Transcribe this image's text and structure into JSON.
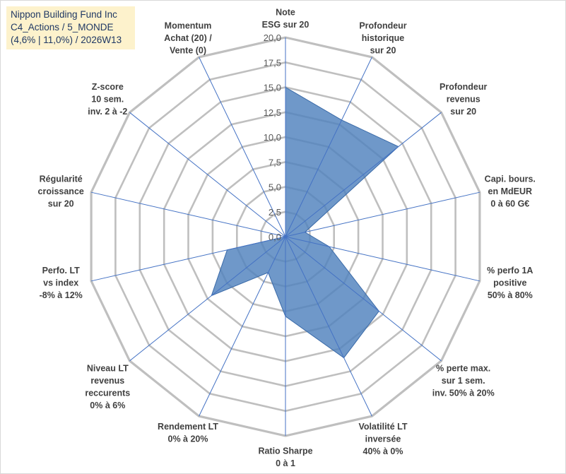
{
  "title_box": {
    "line1": "Nippon Building Fund Inc",
    "line2": "C4_Actions / 5_MONDE",
    "line3": "(4,6% | 11,0%) / 2026W13"
  },
  "chart_data": {
    "type": "radar",
    "rmax": 20,
    "ticks": [
      "0,0",
      "2,5",
      "5,0",
      "7,5",
      "10,0",
      "12,5",
      "15,0",
      "17,5",
      "20,0"
    ],
    "tick_values": [
      0,
      2.5,
      5,
      7.5,
      10,
      12.5,
      15,
      17.5,
      20
    ],
    "axes": [
      {
        "label": [
          "Note",
          "ESG sur 20"
        ],
        "value": 15.0
      },
      {
        "label": [
          "Profondeur",
          "historique",
          "sur 20"
        ],
        "value": 13.0
      },
      {
        "label": [
          "Profondeur",
          "revenus",
          "sur 20"
        ],
        "value": 14.5
      },
      {
        "label": [
          "Capi. bours.",
          "en MdEUR",
          "0 à 60 G€"
        ],
        "value": 2.0
      },
      {
        "label": [
          "% perfo 1A",
          "positive",
          "50% à 80%"
        ],
        "value": 4.5
      },
      {
        "label": [
          "% perte max.",
          "sur 1 sem.",
          "inv. 50% à 20%"
        ],
        "value": 12.0
      },
      {
        "label": [
          "Volatilité LT",
          "inversée",
          "40% à 0%"
        ],
        "value": 13.5
      },
      {
        "label": [
          "Ratio Sharpe",
          "0 à 1"
        ],
        "value": 8.0
      },
      {
        "label": [
          "Rendement LT",
          "0% à 20%"
        ],
        "value": 4.0
      },
      {
        "label": [
          "Niveau LT",
          "revenus",
          "reccurents",
          "0% à 6%"
        ],
        "value": 9.5
      },
      {
        "label": [
          "Perfo. LT",
          "vs index",
          "-8% à 12%"
        ],
        "value": 6.0
      },
      {
        "label": [
          "Régularité",
          "croissance",
          "sur 20"
        ],
        "value": 0.0
      },
      {
        "label": [
          "Z-score",
          "10 sem.",
          "inv. 2 à -2"
        ],
        "value": 0.0
      },
      {
        "label": [
          "Momentum",
          "Achat (20) /",
          "Vente (0)"
        ],
        "value": 0.0
      }
    ],
    "colors": {
      "fill": "#4f81bd",
      "grid": "#bfbfbf",
      "spoke": "#4472c4",
      "title_bg": "#fdf2cc",
      "title_text": "#1f3864"
    }
  }
}
